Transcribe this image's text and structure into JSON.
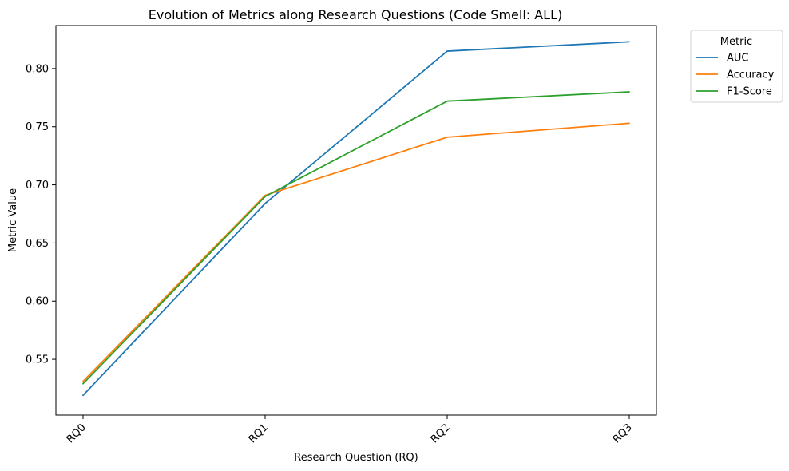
{
  "chart_data": {
    "type": "line",
    "title": "Evolution of Metrics along Research Questions (Code Smell: ALL)",
    "xlabel": "Research Question (RQ)",
    "ylabel": "Metric Value",
    "categories": [
      "RQ0",
      "RQ1",
      "RQ2",
      "RQ3"
    ],
    "ylim": [
      0.502,
      0.837
    ],
    "yticks": [
      0.55,
      0.6,
      0.65,
      0.7,
      0.75,
      0.8
    ],
    "ytick_labels": [
      "0.55",
      "0.60",
      "0.65",
      "0.70",
      "0.75",
      "0.80"
    ],
    "series": [
      {
        "name": "AUC",
        "color": "#1f77b4",
        "values": [
          0.519,
          0.684,
          0.815,
          0.823
        ]
      },
      {
        "name": "Accuracy",
        "color": "#ff7f0e",
        "values": [
          0.531,
          0.691,
          0.741,
          0.753
        ]
      },
      {
        "name": "F1-Score",
        "color": "#2ca02c",
        "values": [
          0.529,
          0.69,
          0.772,
          0.78
        ]
      }
    ],
    "legend": {
      "title": "Metric",
      "placement": "outside-top-right"
    },
    "grid": false
  }
}
